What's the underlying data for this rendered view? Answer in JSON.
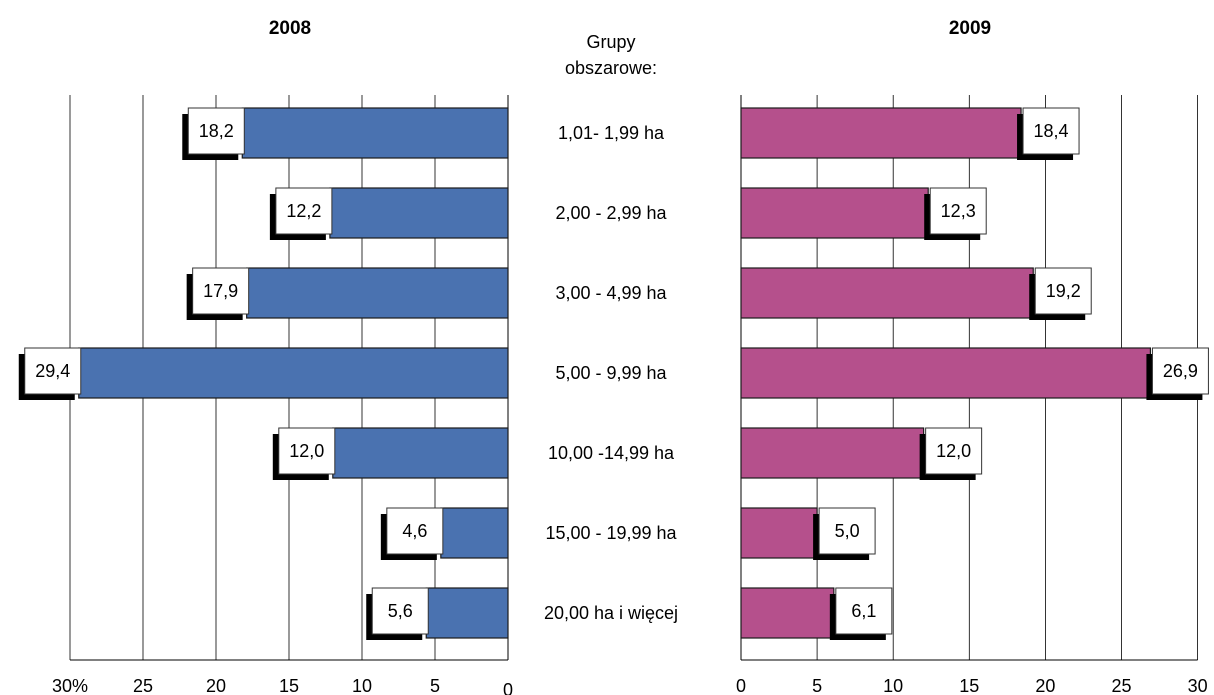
{
  "chart_data": {
    "type": "bar",
    "orientation": "horizontal",
    "categories_title_lines": [
      "Grupy",
      "obszarowe:"
    ],
    "categories": [
      "1,01- 1,99 ha",
      "2,00 - 2,99 ha",
      "3,00 - 4,99 ha",
      "5,00 - 9,99 ha",
      "10,00 -14,99 ha",
      "15,00 - 19,99 ha",
      "20,00 ha i więcej"
    ],
    "panels": [
      {
        "title": "2008",
        "direction": "right-to-left",
        "color": "#4a72b0",
        "values": [
          18.2,
          12.2,
          17.9,
          29.4,
          12.0,
          4.6,
          5.6
        ],
        "value_labels": [
          "18,2",
          "12,2",
          "17,9",
          "29,4",
          "12,0",
          "4,6",
          "5,6"
        ],
        "xlim": [
          0,
          30
        ],
        "ticks": [
          0,
          5,
          10,
          15,
          20,
          25,
          30
        ],
        "tick_labels": [
          "0",
          "5",
          "10",
          "15",
          "20",
          "25",
          "30%"
        ],
        "grid": true
      },
      {
        "title": "2009",
        "direction": "left-to-right",
        "color": "#b5508c",
        "values": [
          18.4,
          12.3,
          19.2,
          26.9,
          12.0,
          5.0,
          6.1
        ],
        "value_labels": [
          "18,4",
          "12,3",
          "19,2",
          "26,9",
          "12,0",
          "5,0",
          "6,1"
        ],
        "xlim": [
          0,
          30
        ],
        "ticks": [
          0,
          5,
          10,
          15,
          20,
          25,
          30
        ],
        "tick_labels": [
          "0",
          "5",
          "10",
          "15",
          "20",
          "25",
          "30"
        ],
        "grid": true
      }
    ]
  }
}
